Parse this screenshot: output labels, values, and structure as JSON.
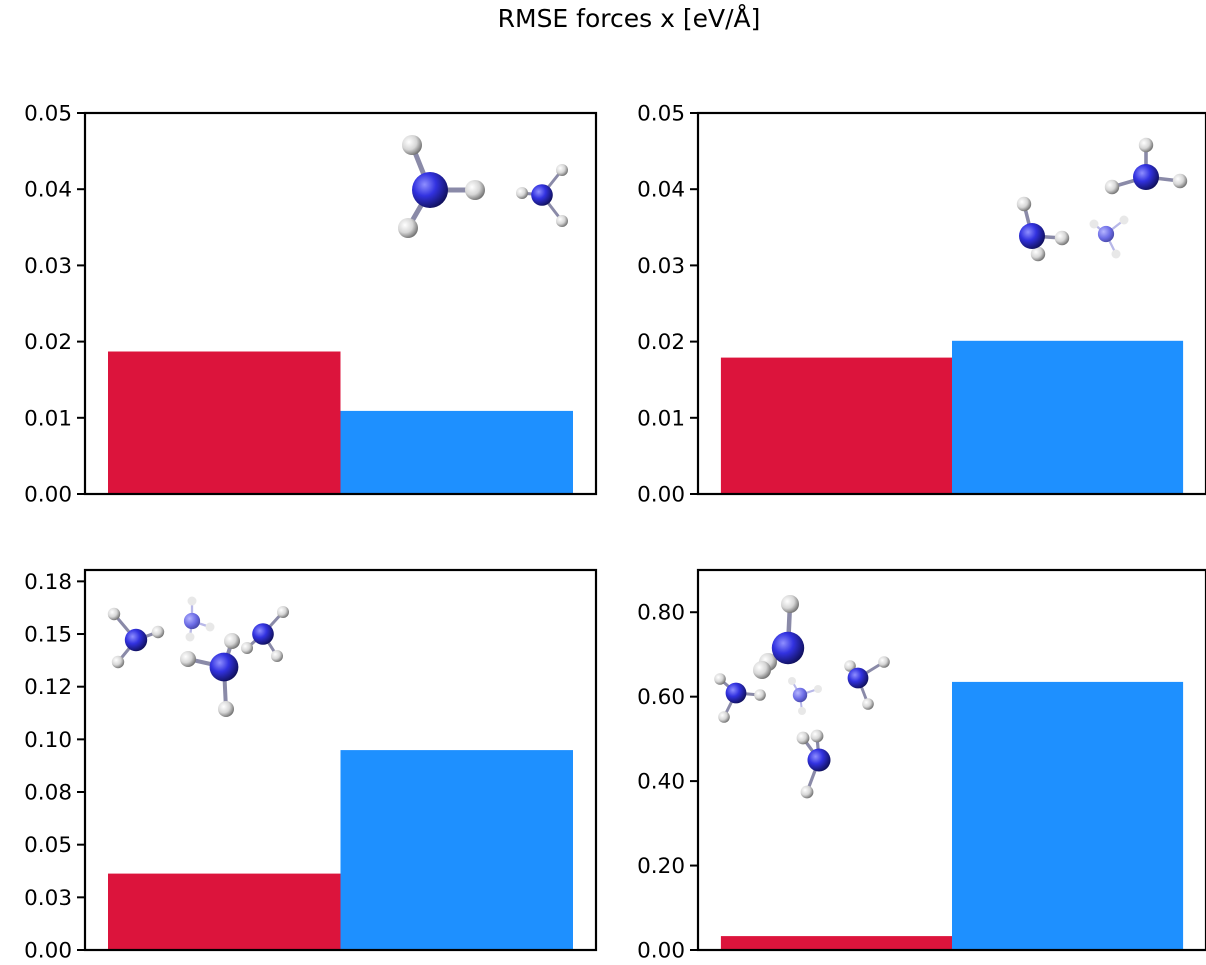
{
  "title": "RMSE forces x [eV/Å]",
  "colors": {
    "method_a": "#dc143c",
    "method_b": "#1e90ff",
    "nitrogen": "#2a2ad8",
    "hydrogen": "#dcdcdc"
  },
  "chart_data": [
    {
      "type": "bar",
      "molecules": 2,
      "categories": [
        "",
        ""
      ],
      "values": [
        0.0187,
        0.0109
      ],
      "ylim": [
        0,
        0.05
      ],
      "yticks": [
        "0.00",
        "0.01",
        "0.02",
        "0.03",
        "0.04",
        "0.05"
      ],
      "ytick_values": [
        0,
        0.01,
        0.02,
        0.03,
        0.04,
        0.05
      ],
      "xlabel": "",
      "ylabel": "",
      "grid": false
    },
    {
      "type": "bar",
      "molecules": 3,
      "categories": [
        "",
        ""
      ],
      "values": [
        0.0179,
        0.0201
      ],
      "ylim": [
        0,
        0.05
      ],
      "yticks": [
        "0.00",
        "0.01",
        "0.02",
        "0.03",
        "0.04",
        "0.05"
      ],
      "ytick_values": [
        0,
        0.01,
        0.02,
        0.03,
        0.04,
        0.05
      ],
      "xlabel": "",
      "ylabel": "",
      "grid": false
    },
    {
      "type": "bar",
      "molecules": 4,
      "categories": [
        "",
        ""
      ],
      "values": [
        0.037,
        0.0968
      ],
      "ylim": [
        0,
        0.184
      ],
      "yticks": [
        "0.00",
        "0.03",
        "0.05",
        "0.08",
        "0.10",
        "0.12",
        "0.15",
        "0.18"
      ],
      "ytick_values": [
        0,
        0.0255,
        0.051,
        0.0765,
        0.102,
        0.1275,
        0.153,
        0.1785
      ],
      "xlabel": "",
      "ylabel": "",
      "grid": false
    },
    {
      "type": "bar",
      "molecules": 5,
      "categories": [
        "",
        ""
      ],
      "values": [
        0.033,
        0.635
      ],
      "ylim": [
        0,
        0.9
      ],
      "yticks": [
        "0.00",
        "0.20",
        "0.40",
        "0.60",
        "0.80"
      ],
      "ytick_values": [
        0,
        0.2,
        0.4,
        0.6,
        0.8
      ],
      "xlabel": "",
      "ylabel": "",
      "grid": false
    }
  ]
}
